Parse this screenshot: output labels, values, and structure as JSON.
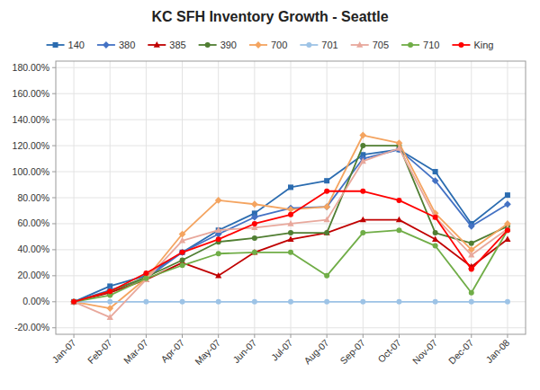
{
  "chart_data": {
    "type": "line",
    "title": "KC SFH Inventory Growth - Seattle",
    "categories": [
      "Jan-07",
      "Feb-07",
      "Mar-07",
      "Apr-07",
      "May-07",
      "Jun-07",
      "Jul-07",
      "Aug-07",
      "Sep-07",
      "Oct-07",
      "Nov-07",
      "Dec-07",
      "Jan-08"
    ],
    "series": [
      {
        "name": "140",
        "color": "#2B6CB0",
        "marker": "square",
        "values": [
          0.0,
          0.12,
          0.2,
          0.38,
          0.55,
          0.68,
          0.88,
          0.93,
          1.13,
          1.17,
          1.0,
          0.6,
          0.82
        ]
      },
      {
        "name": "380",
        "color": "#4472C4",
        "marker": "diamond",
        "values": [
          0.0,
          0.09,
          0.18,
          0.38,
          0.52,
          0.65,
          0.72,
          0.73,
          1.1,
          1.17,
          0.93,
          0.58,
          0.75
        ]
      },
      {
        "name": "385",
        "color": "#C00000",
        "marker": "triangle",
        "values": [
          0.0,
          0.07,
          0.17,
          0.3,
          0.2,
          0.38,
          0.48,
          0.53,
          0.63,
          0.63,
          0.48,
          0.27,
          0.48
        ]
      },
      {
        "name": "390",
        "color": "#507E32",
        "marker": "circle",
        "values": [
          0.0,
          0.08,
          0.19,
          0.32,
          0.46,
          0.49,
          0.53,
          0.53,
          1.2,
          1.2,
          0.53,
          0.45,
          0.58
        ]
      },
      {
        "name": "700",
        "color": "#F4A460",
        "marker": "diamond",
        "values": [
          0.0,
          -0.05,
          0.18,
          0.52,
          0.78,
          0.75,
          0.71,
          0.73,
          1.28,
          1.22,
          0.68,
          0.4,
          0.6
        ]
      },
      {
        "name": "701",
        "color": "#9DC3E6",
        "marker": "circle",
        "values": [
          0.0,
          0.0,
          0.0,
          0.0,
          0.0,
          0.0,
          0.0,
          0.0,
          0.0,
          0.0,
          0.0,
          0.0,
          0.0
        ]
      },
      {
        "name": "705",
        "color": "#E8A89C",
        "marker": "triangle",
        "values": [
          0.0,
          -0.12,
          0.17,
          0.47,
          0.55,
          0.57,
          0.6,
          0.63,
          1.08,
          1.18,
          0.65,
          0.36,
          0.56
        ]
      },
      {
        "name": "710",
        "color": "#70AD47",
        "marker": "circle",
        "values": [
          0.0,
          0.05,
          0.18,
          0.28,
          0.37,
          0.38,
          0.38,
          0.2,
          0.53,
          0.55,
          0.43,
          0.07,
          0.55
        ]
      },
      {
        "name": "King",
        "color": "#FF0000",
        "marker": "circle",
        "values": [
          0.0,
          0.08,
          0.22,
          0.38,
          0.48,
          0.6,
          0.67,
          0.85,
          0.85,
          0.78,
          0.65,
          0.25,
          0.55
        ]
      }
    ],
    "ylim": [
      -0.25,
      1.85
    ],
    "yticks": [
      {
        "value": -0.2,
        "label": "-20.00%"
      },
      {
        "value": 0.0,
        "label": "0.00%"
      },
      {
        "value": 0.2,
        "label": "20.00%"
      },
      {
        "value": 0.4,
        "label": "40.00%"
      },
      {
        "value": 0.6,
        "label": "60.00%"
      },
      {
        "value": 0.8,
        "label": "80.00%"
      },
      {
        "value": 1.0,
        "label": "100.00%"
      },
      {
        "value": 1.2,
        "label": "120.00%"
      },
      {
        "value": 1.4,
        "label": "140.00%"
      },
      {
        "value": 1.6,
        "label": "160.00%"
      },
      {
        "value": 1.8,
        "label": "180.00%"
      }
    ],
    "grid": true,
    "legend": "top"
  }
}
